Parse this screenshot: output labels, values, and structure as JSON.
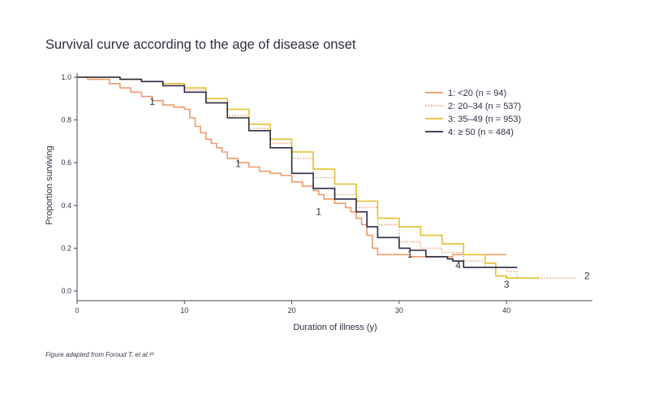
{
  "chart_data": {
    "type": "line",
    "step": true,
    "title": "Survival curve according to the age of disease onset",
    "xlabel": "Duration of illness (y)",
    "ylabel": "Proportion surviving",
    "xlim": [
      0,
      48
    ],
    "ylim": [
      0,
      1.0
    ],
    "xticks": [
      "0",
      "10",
      "20",
      "30",
      "40"
    ],
    "yticks": [
      "0.0",
      "0.2",
      "0.4",
      "0.6",
      "0.8",
      "1.0"
    ],
    "legend_position": "top-right",
    "series": [
      {
        "name": "1: <20 (n = 94)",
        "color": "#ee9a6a",
        "style": "solid",
        "points": [
          [
            0,
            1.0
          ],
          [
            1,
            0.99
          ],
          [
            3,
            0.97
          ],
          [
            4,
            0.95
          ],
          [
            5,
            0.93
          ],
          [
            6,
            0.91
          ],
          [
            7,
            0.89
          ],
          [
            8,
            0.87
          ],
          [
            9,
            0.86
          ],
          [
            10,
            0.85
          ],
          [
            10.5,
            0.81
          ],
          [
            11,
            0.77
          ],
          [
            11.5,
            0.74
          ],
          [
            12,
            0.71
          ],
          [
            12.5,
            0.69
          ],
          [
            13,
            0.67
          ],
          [
            13.5,
            0.65
          ],
          [
            14,
            0.62
          ],
          [
            15,
            0.6
          ],
          [
            16,
            0.58
          ],
          [
            17,
            0.56
          ],
          [
            18,
            0.55
          ],
          [
            19,
            0.54
          ],
          [
            20,
            0.51
          ],
          [
            21,
            0.49
          ],
          [
            22,
            0.47
          ],
          [
            22.5,
            0.45
          ],
          [
            23,
            0.43
          ],
          [
            24,
            0.41
          ],
          [
            25,
            0.39
          ],
          [
            25.5,
            0.37
          ],
          [
            26,
            0.34
          ],
          [
            26.5,
            0.31
          ],
          [
            27,
            0.26
          ],
          [
            27.5,
            0.2
          ],
          [
            28,
            0.17
          ],
          [
            30,
            0.17
          ],
          [
            31,
            0.16
          ],
          [
            33,
            0.16
          ],
          [
            35,
            0.17
          ],
          [
            40,
            0.17
          ]
        ]
      },
      {
        "name": "2: 20–34 (n = 537)",
        "color": "#ee9a6a",
        "style": "dotted",
        "points": [
          [
            0,
            1.0
          ],
          [
            4,
            0.99
          ],
          [
            6,
            0.98
          ],
          [
            8,
            0.96
          ],
          [
            10,
            0.94
          ],
          [
            12,
            0.88
          ],
          [
            14,
            0.82
          ],
          [
            16,
            0.76
          ],
          [
            18,
            0.69
          ],
          [
            20,
            0.62
          ],
          [
            22,
            0.53
          ],
          [
            24,
            0.45
          ],
          [
            26,
            0.39
          ],
          [
            28,
            0.31
          ],
          [
            30,
            0.23
          ],
          [
            32,
            0.2
          ],
          [
            34,
            0.18
          ],
          [
            36,
            0.14
          ],
          [
            38,
            0.11
          ],
          [
            40,
            0.09
          ],
          [
            41,
            0.06
          ],
          [
            46.5,
            0.06
          ]
        ]
      },
      {
        "name": "3: 35–49 (n = 953)",
        "color": "#e3bf2e",
        "style": "solid",
        "points": [
          [
            0,
            1.0
          ],
          [
            4,
            0.99
          ],
          [
            6,
            0.98
          ],
          [
            8,
            0.97
          ],
          [
            10,
            0.95
          ],
          [
            12,
            0.9
          ],
          [
            14,
            0.85
          ],
          [
            16,
            0.78
          ],
          [
            18,
            0.71
          ],
          [
            20,
            0.65
          ],
          [
            22,
            0.57
          ],
          [
            24,
            0.5
          ],
          [
            26,
            0.42
          ],
          [
            28,
            0.34
          ],
          [
            30,
            0.3
          ],
          [
            32,
            0.26
          ],
          [
            34,
            0.22
          ],
          [
            36,
            0.17
          ],
          [
            38,
            0.13
          ],
          [
            39,
            0.07
          ],
          [
            40,
            0.06
          ],
          [
            43,
            0.06
          ]
        ]
      },
      {
        "name": "4: ≥  50 (n = 484)",
        "color": "#2d2945",
        "style": "solid",
        "points": [
          [
            0,
            1.0
          ],
          [
            4,
            0.99
          ],
          [
            6,
            0.98
          ],
          [
            8,
            0.96
          ],
          [
            10,
            0.93
          ],
          [
            12,
            0.88
          ],
          [
            14,
            0.81
          ],
          [
            16,
            0.75
          ],
          [
            18,
            0.67
          ],
          [
            20,
            0.55
          ],
          [
            22,
            0.48
          ],
          [
            24,
            0.43
          ],
          [
            26,
            0.37
          ],
          [
            27,
            0.3
          ],
          [
            28,
            0.25
          ],
          [
            30,
            0.2
          ],
          [
            31,
            0.19
          ],
          [
            32.5,
            0.16
          ],
          [
            34,
            0.16
          ],
          [
            34.5,
            0.15
          ],
          [
            35,
            0.14
          ],
          [
            36,
            0.11
          ],
          [
            41,
            0.11
          ]
        ]
      }
    ],
    "annotations": [
      {
        "text": "1",
        "x": 7,
        "y": 0.87
      },
      {
        "text": "1",
        "x": 15,
        "y": 0.58
      },
      {
        "text": "1",
        "x": 22.5,
        "y": 0.355
      },
      {
        "text": "1",
        "x": 31,
        "y": 0.155
      },
      {
        "text": "4",
        "x": 35.5,
        "y": 0.105
      },
      {
        "text": "2",
        "x": 47.5,
        "y": 0.055
      },
      {
        "text": "3",
        "x": 40,
        "y": 0.015
      }
    ]
  },
  "footnote": "Figure adapted from Foroud T, et al.²³"
}
